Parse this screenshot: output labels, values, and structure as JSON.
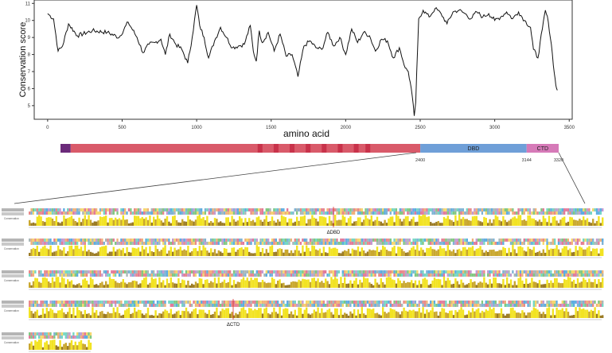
{
  "chart_data": [
    {
      "type": "line",
      "ylabel": "Conservation score",
      "xlabel": "amino acid",
      "xticks": [
        0,
        500,
        1000,
        1500,
        2000,
        2500,
        3000,
        3500
      ],
      "yticks": [
        5,
        6,
        7,
        8,
        9,
        10,
        11
      ],
      "xlim": [
        -90,
        3520
      ],
      "ylim": [
        4.2,
        11.2
      ],
      "series": [
        {
          "x": [
            0,
            40,
            70,
            100,
            140,
            200,
            300,
            400,
            480,
            540,
            600,
            640,
            680,
            720,
            760,
            790,
            820,
            860,
            900,
            940,
            970,
            1000,
            1020,
            1050,
            1080,
            1120,
            1160,
            1200,
            1240,
            1280,
            1320,
            1360,
            1380,
            1400,
            1420,
            1440,
            1480,
            1520,
            1560,
            1600,
            1640,
            1680,
            1720,
            1760,
            1800,
            1840,
            1880,
            1920,
            1960,
            2000,
            2040,
            2080,
            2120,
            2160,
            2200,
            2240,
            2280,
            2320,
            2360,
            2400,
            2420,
            2440,
            2460,
            2470,
            2490,
            2520,
            2560,
            2600,
            2640,
            2680,
            2720,
            2760,
            2800,
            2840,
            2880,
            2920,
            2960,
            3000,
            3040,
            3080,
            3120,
            3160,
            3200,
            3240,
            3260,
            3290,
            3320,
            3340,
            3360,
            3380,
            3400,
            3410,
            3420
          ],
          "values": [
            10.4,
            10.1,
            8.2,
            8.5,
            9.8,
            9.1,
            9.4,
            9.3,
            9.0,
            9.9,
            9.0,
            8.1,
            8.6,
            8.7,
            8.9,
            8.0,
            9.2,
            8.6,
            8.3,
            7.5,
            9.0,
            10.9,
            9.7,
            9.0,
            7.8,
            8.8,
            9.6,
            9.0,
            8.4,
            8.5,
            8.6,
            9.7,
            8.2,
            7.6,
            9.4,
            8.7,
            9.3,
            8.2,
            9.2,
            7.9,
            8.0,
            6.7,
            8.5,
            8.8,
            8.4,
            8.3,
            9.3,
            8.5,
            9.0,
            8.0,
            9.5,
            8.7,
            9.3,
            9.1,
            8.2,
            8.9,
            8.8,
            7.8,
            8.4,
            7.2,
            7.0,
            6.0,
            4.4,
            5.2,
            10.1,
            10.6,
            10.2,
            10.7,
            10.4,
            9.8,
            10.5,
            10.6,
            10.4,
            10.1,
            10.5,
            10.2,
            10.4,
            10.0,
            10.2,
            10.5,
            10.1,
            10.5,
            10.0,
            9.6,
            8.3,
            7.8,
            9.5,
            10.6,
            9.9,
            8.6,
            6.9,
            6.2,
            5.9
          ]
        }
      ]
    },
    {
      "type": "domain-map",
      "xlim": [
        0,
        3420
      ],
      "segments": [
        {
          "start": 0,
          "end": 70,
          "label": "",
          "color": "#6b2a7a"
        },
        {
          "start": 70,
          "end": 2470,
          "label": "",
          "color": "#d95a6a"
        },
        {
          "start": 2470,
          "end": 3200,
          "label": "DBD",
          "color": "#6f9fd8"
        },
        {
          "start": 3200,
          "end": 3420,
          "label": "CTD",
          "color": "#d67ab8"
        }
      ],
      "notches": [
        1370,
        1480,
        1590,
        1700,
        1810,
        1920,
        2030,
        2110
      ],
      "notch_color": "#c8324a",
      "position_labels": [
        {
          "pos": 2470,
          "text": "2400"
        },
        {
          "pos": 3200,
          "text": "3144"
        },
        {
          "pos": 3420,
          "text": "3320"
        }
      ]
    }
  ],
  "alignment": {
    "row_label": "Conservation",
    "deletion_markers": [
      {
        "row": 0,
        "text": "ΔDBD"
      },
      {
        "row": 3,
        "text": "ΔCTD"
      }
    ],
    "residue_colors": [
      "#7fb3d5",
      "#82c882",
      "#e88a8a",
      "#c39bd3",
      "#f5d76e",
      "#76d7c4",
      "#f0b27a",
      "#aab7b8",
      "#e27a9a",
      "#5dade2"
    ],
    "bar_colors": {
      "high": "#f2e322",
      "mid": "#c9a72e",
      "low": "#9b7b24"
    }
  }
}
